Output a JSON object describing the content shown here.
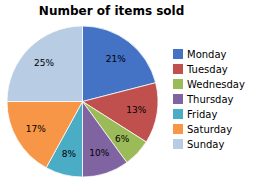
{
  "chart_data": {
    "type": "pie",
    "title": "Number of items sold",
    "categories": [
      "Monday",
      "Tuesday",
      "Wednesday",
      "Thursday",
      "Friday",
      "Saturday",
      "Sunday"
    ],
    "values": [
      21,
      13,
      6,
      10,
      8,
      17,
      25
    ],
    "value_labels": [
      "21%",
      "13%",
      "6%",
      "10%",
      "8%",
      "17%",
      "25%"
    ],
    "colors": [
      "#4472C4",
      "#C0504D",
      "#9BBB59",
      "#8064A2",
      "#4BACC6",
      "#F79646",
      "#B8CCE4"
    ],
    "data_labels": true,
    "legend": "right"
  }
}
